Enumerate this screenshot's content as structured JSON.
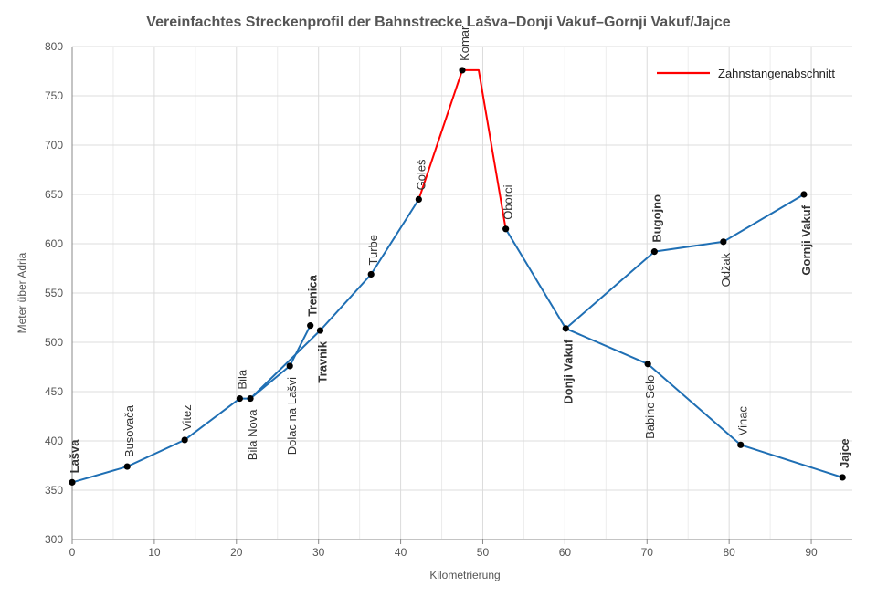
{
  "chart_data": {
    "type": "line",
    "title": "Vereinfachtes Streckenprofil der Bahnstrecke Lašva–Donji Vakuf–Gornji Vakuf/Jajce",
    "xlabel": "Kilometrierung",
    "ylabel": "Meter über Adria",
    "xlim": [
      0,
      95
    ],
    "ylim": [
      300,
      800
    ],
    "xticks": [
      0,
      10,
      20,
      30,
      40,
      50,
      60,
      70,
      80,
      90
    ],
    "yticks": [
      300,
      350,
      400,
      450,
      500,
      550,
      600,
      650,
      700,
      750,
      800
    ],
    "grid": true,
    "legend": {
      "position": "top-right",
      "entries": [
        {
          "name": "Zahnstangenabschnitt",
          "color": "#ff0000"
        }
      ]
    },
    "colors": {
      "adhesion": "#1f6fb4",
      "rack": "#ff0000",
      "point": "#000000"
    },
    "series": [
      {
        "name": "",
        "color": "#1f6fb4",
        "points": [
          [
            0,
            358
          ],
          [
            6.7,
            374
          ],
          [
            13.7,
            401
          ],
          [
            20.4,
            443
          ],
          [
            21.7,
            443
          ],
          [
            26.5,
            476
          ],
          [
            29,
            517
          ]
        ]
      },
      {
        "name": "",
        "color": "#1f6fb4",
        "points": [
          [
            21.7,
            443
          ],
          [
            30.2,
            512
          ],
          [
            36.4,
            569
          ],
          [
            42.2,
            645
          ]
        ]
      },
      {
        "name": "Zahnstangenabschnitt",
        "color": "#ff0000",
        "points": [
          [
            42.2,
            645
          ],
          [
            47.5,
            776
          ],
          [
            49.5,
            776
          ],
          [
            52.8,
            615
          ]
        ]
      },
      {
        "name": "",
        "color": "#1f6fb4",
        "points": [
          [
            52.8,
            615
          ],
          [
            60.1,
            514
          ],
          [
            70.9,
            592
          ],
          [
            79.3,
            602
          ],
          [
            89.1,
            650
          ]
        ]
      },
      {
        "name": "",
        "color": "#1f6fb4",
        "points": [
          [
            60.1,
            514
          ],
          [
            70.1,
            478
          ],
          [
            81.4,
            396
          ],
          [
            93.8,
            363
          ]
        ]
      }
    ],
    "stations": [
      {
        "name": "Lašva",
        "km": 0,
        "elevation": 358,
        "bold": true,
        "label_position": "above"
      },
      {
        "name": "Busovača",
        "km": 6.7,
        "elevation": 374,
        "bold": false,
        "label_position": "above"
      },
      {
        "name": "Vitez",
        "km": 13.7,
        "elevation": 401,
        "bold": false,
        "label_position": "above"
      },
      {
        "name": "Bila",
        "km": 20.4,
        "elevation": 443,
        "bold": false,
        "label_position": "above"
      },
      {
        "name": "Bila Nova",
        "km": 21.7,
        "elevation": 443,
        "bold": false,
        "label_position": "below"
      },
      {
        "name": "Dolac na Lašvi",
        "km": 26.5,
        "elevation": 476,
        "bold": false,
        "label_position": "below"
      },
      {
        "name": "Trenica",
        "km": 29,
        "elevation": 517,
        "bold": true,
        "label_position": "above"
      },
      {
        "name": "Travnik",
        "km": 30.2,
        "elevation": 512,
        "bold": true,
        "label_position": "below"
      },
      {
        "name": "Turbe",
        "km": 36.4,
        "elevation": 569,
        "bold": false,
        "label_position": "above"
      },
      {
        "name": "Goleš",
        "km": 42.2,
        "elevation": 645,
        "bold": false,
        "label_position": "above"
      },
      {
        "name": "Komar",
        "km": 47.5,
        "elevation": 776,
        "bold": false,
        "label_position": "above"
      },
      {
        "name": "Oborci",
        "km": 52.8,
        "elevation": 615,
        "bold": false,
        "label_position": "above"
      },
      {
        "name": "Donji Vakuf",
        "km": 60.1,
        "elevation": 514,
        "bold": true,
        "label_position": "below"
      },
      {
        "name": "Bugojno",
        "km": 70.9,
        "elevation": 592,
        "bold": true,
        "label_position": "above"
      },
      {
        "name": "Odžak",
        "km": 79.3,
        "elevation": 602,
        "bold": false,
        "label_position": "below"
      },
      {
        "name": "Gornji Vakuf",
        "km": 89.1,
        "elevation": 650,
        "bold": true,
        "label_position": "below"
      },
      {
        "name": "Babino Selo",
        "km": 70.1,
        "elevation": 478,
        "bold": false,
        "label_position": "below"
      },
      {
        "name": "Vinac",
        "km": 81.4,
        "elevation": 396,
        "bold": false,
        "label_position": "above"
      },
      {
        "name": "Jajce",
        "km": 93.8,
        "elevation": 363,
        "bold": true,
        "label_position": "above"
      }
    ]
  }
}
